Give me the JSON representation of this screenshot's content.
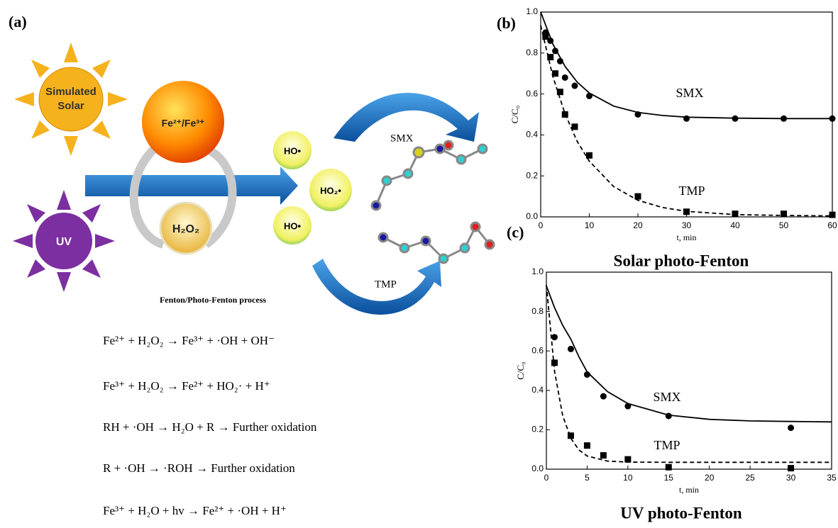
{
  "panel_a": {
    "label": "(a)",
    "solar_lines": [
      "Simulated",
      "Solar"
    ],
    "uv": "UV",
    "iron": "Fe²⁺/Fe³⁺",
    "h2o2": "H₂O₂",
    "radicals": [
      "HO•",
      "HO₂•",
      "HO•"
    ],
    "molecules": [
      "SMX",
      "TMP"
    ],
    "process": "Fenton/Photo-Fenton process",
    "equations": [
      "Fe²⁺ + H₂O₂ → Fe³⁺ + ·OH + OH⁻",
      "Fe³⁺ + H₂O₂ → Fe²⁺ + HO₂· + H⁺",
      "RH + ·OH → H₂O + R → Further oxidation",
      "R + ·OH → ·ROH → Further oxidation",
      "Fe³⁺ + H₂O + hv → Fe²⁺ + ·OH + H⁺"
    ]
  },
  "chart_data": [
    {
      "type": "scatter",
      "panel": "(b)",
      "title": "Solar photo-Fenton",
      "x_label": "t, min",
      "y_label": "C/C₀",
      "x": [
        1,
        2,
        3,
        4,
        5,
        7,
        10,
        20,
        30,
        40,
        50,
        60
      ],
      "fit_x": [
        0,
        2.5,
        5,
        7.5,
        10,
        15,
        20,
        25,
        30,
        40,
        50,
        60
      ],
      "series": [
        {
          "name": "SMX",
          "marker": "circle",
          "color": "#000000",
          "dashed": false,
          "values": [
            0.9,
            0.86,
            0.81,
            0.76,
            0.68,
            0.64,
            0.59,
            0.5,
            0.48,
            0.48,
            0.48,
            0.48
          ],
          "fit_values": [
            1.0,
            0.844,
            0.735,
            0.658,
            0.605,
            0.541,
            0.51,
            0.495,
            0.487,
            0.482,
            0.48,
            0.48
          ]
        },
        {
          "name": "TMP",
          "marker": "square",
          "color": "#000000",
          "dashed": true,
          "values": [
            0.88,
            0.78,
            0.7,
            0.61,
            0.5,
            0.44,
            0.3,
            0.1,
            0.025,
            0.015,
            0.015,
            0.01
          ],
          "fit_values": [
            0.935,
            0.686,
            0.503,
            0.369,
            0.272,
            0.148,
            0.081,
            0.046,
            0.027,
            0.011,
            0.007,
            0.005
          ]
        }
      ],
      "xlim": [
        0,
        60
      ],
      "xticks": [
        0,
        10,
        20,
        30,
        40,
        50,
        60
      ],
      "ylim": [
        0,
        1.0
      ],
      "yticks": [
        {
          "value": 0,
          "label": "0.0"
        },
        0.2,
        0.4,
        0.6,
        0.8,
        {
          "value": 1.0,
          "label": "1.0"
        }
      ]
    },
    {
      "type": "scatter",
      "panel": "(c)",
      "title": "UV photo-Fenton",
      "x_label": "t, min",
      "y_label": "C/C₀",
      "x": [
        1,
        3,
        5,
        7,
        10,
        15,
        30
      ],
      "fit_x": [
        0,
        1,
        2,
        3,
        4,
        5,
        7.5,
        10,
        15,
        20,
        25,
        30,
        35
      ],
      "series": [
        {
          "name": "SMX",
          "marker": "circle",
          "color": "#000000",
          "dashed": false,
          "values": [
            0.67,
            0.61,
            0.48,
            0.37,
            0.32,
            0.27,
            0.21
          ],
          "fit_values": [
            0.93,
            0.82,
            0.73,
            0.66,
            0.57,
            0.494,
            0.394,
            0.333,
            0.274,
            0.253,
            0.245,
            0.242,
            0.24
          ]
        },
        {
          "name": "TMP",
          "marker": "square",
          "color": "#000000",
          "dashed": true,
          "values": [
            0.54,
            0.17,
            0.12,
            0.07,
            0.05,
            0.01,
            0.005
          ],
          "fit_values": [
            0.935,
            0.497,
            0.272,
            0.157,
            0.098,
            0.067,
            0.041,
            0.036,
            0.035,
            0.035,
            0.035,
            0.035,
            0.035
          ]
        }
      ],
      "xlim": [
        0,
        35
      ],
      "xticks": [
        0,
        5,
        10,
        15,
        20,
        25,
        30,
        35
      ],
      "ylim": [
        0,
        1.0
      ],
      "yticks": [
        {
          "value": 0,
          "label": "0.0"
        },
        0.2,
        0.4,
        0.6,
        0.8,
        {
          "value": 1.0,
          "label": "1.0"
        }
      ]
    }
  ]
}
